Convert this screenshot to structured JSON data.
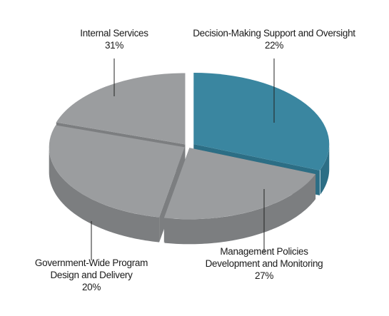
{
  "chart_data": {
    "type": "pie",
    "three_d": true,
    "legend": "none",
    "slices": [
      {
        "label_lines": [
          "Internal Services"
        ],
        "pct_label": "31%",
        "value": 31,
        "color": "#3a86a0",
        "side_color": "#2c6e85"
      },
      {
        "label_lines": [
          "Decision-Making Support and Oversight"
        ],
        "pct_label": "22%",
        "value": 22,
        "color": "#9b9d9f",
        "side_color": "#7c7e80"
      },
      {
        "label_lines": [
          "Management Policies",
          "Development and Monitoring"
        ],
        "pct_label": "27%",
        "value": 27,
        "color": "#9b9d9f",
        "side_color": "#7c7e80"
      },
      {
        "label_lines": [
          "Government-Wide Program",
          "Design and Delivery"
        ],
        "pct_label": "20%",
        "value": 20,
        "color": "#9b9d9f",
        "side_color": "#7c7e80"
      }
    ]
  }
}
